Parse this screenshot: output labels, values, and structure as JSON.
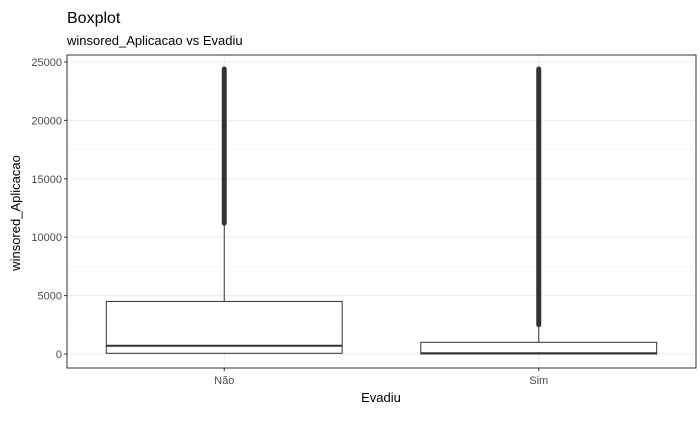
{
  "chart_data": {
    "type": "boxplot",
    "title": "Boxplot",
    "subtitle": "winsored_Aplicacao vs Evadiu",
    "xlabel": "Evadiu",
    "ylabel": "winsored_Aplicacao",
    "categories": [
      "Não",
      "Sim"
    ],
    "ylim": [
      -1200,
      25600
    ],
    "yticks": [
      0,
      5000,
      10000,
      15000,
      20000,
      25000
    ],
    "ytick_labels": [
      "0",
      "5000",
      "10000",
      "15000",
      "20000",
      "25000"
    ],
    "grid": true,
    "boxes": [
      {
        "category": "Não",
        "min": 0,
        "q1": 60,
        "median": 700,
        "q3": 4500,
        "whisker_high": 11200,
        "outliers_from": 11200,
        "outliers_to": 24400
      },
      {
        "category": "Sim",
        "min": 0,
        "q1": 0,
        "median": 60,
        "q3": 1000,
        "whisker_high": 2500,
        "outliers_from": 2500,
        "outliers_to": 24400
      }
    ],
    "colors": {
      "box_line": "#333333",
      "outlier": "#333333",
      "grid_major": "#ebebeb",
      "grid_minor": "#f5f5f5",
      "panel_border": "#333333"
    }
  }
}
